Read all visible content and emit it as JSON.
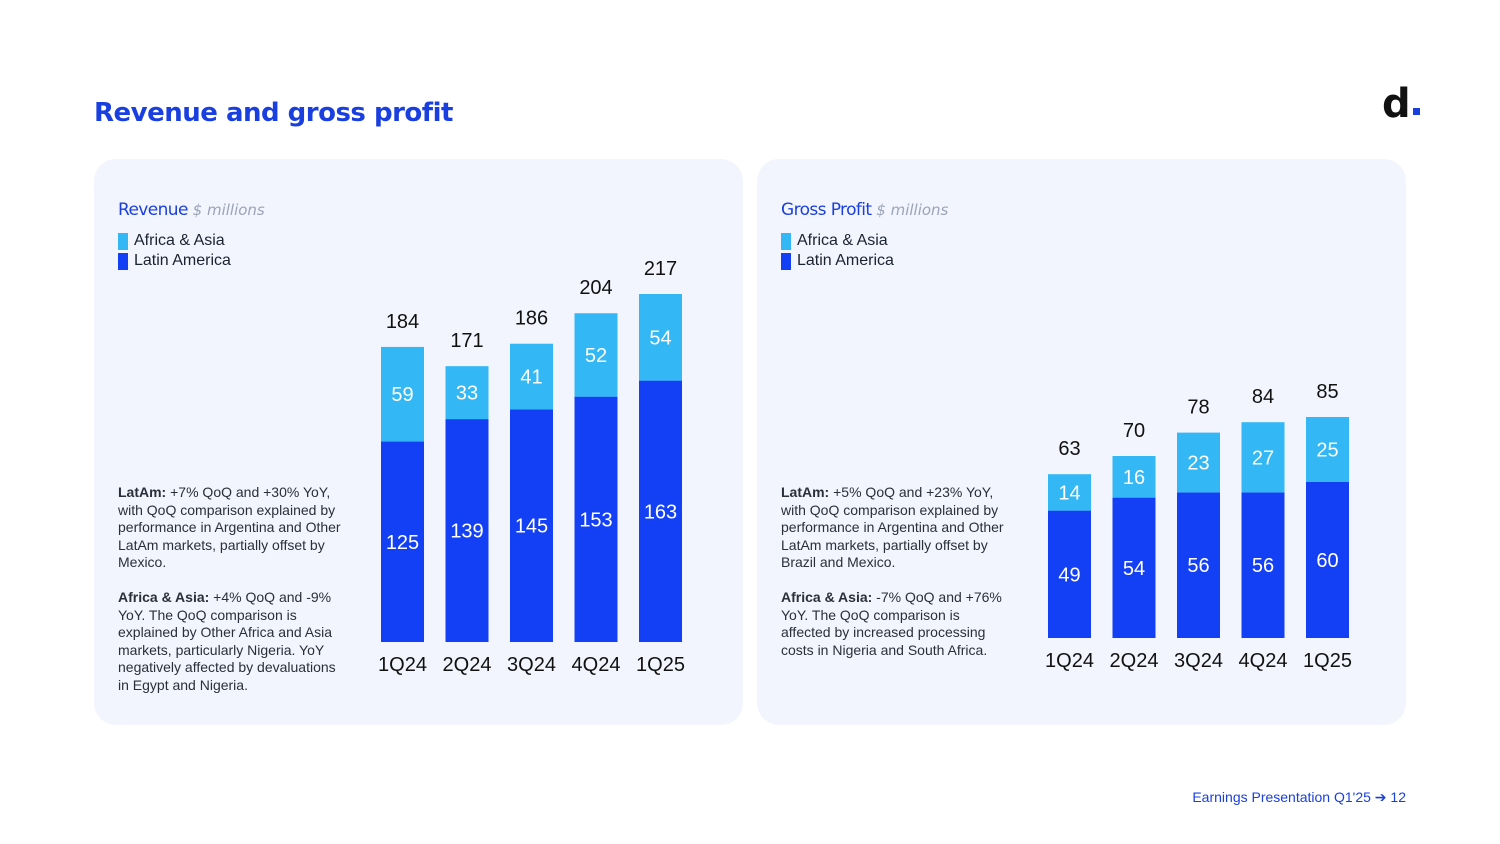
{
  "page": {
    "title": "Revenue and gross profit",
    "logo_text": "d",
    "footer_text": "Earnings Presentation Q1'25 ➔",
    "page_number": "12"
  },
  "colors": {
    "africa_asia": "#33b8f5",
    "latin_america": "#1440f5",
    "accent": "#1a3fe0"
  },
  "legend": [
    "Africa & Asia",
    "Latin America"
  ],
  "revenue_panel": {
    "heading": "Revenue",
    "unit": "$ millions",
    "notes": [
      {
        "label": "LatAm:",
        "text": " +7% QoQ and +30% YoY, with QoQ comparison explained by performance in Argentina and Other LatAm markets, partially offset by Mexico."
      },
      {
        "label": "Africa & Asia:",
        "text": " +4% QoQ and -9% YoY. The QoQ comparison is explained by Other Africa and Asia markets, particularly Nigeria. YoY negatively affected by devaluations in Egypt and Nigeria."
      }
    ]
  },
  "gross_profit_panel": {
    "heading": "Gross Profit",
    "unit": "$ millions",
    "notes": [
      {
        "label": "LatAm:",
        "text": " +5% QoQ and +23% YoY, with QoQ comparison explained by performance in Argentina and Other LatAm markets, partially offset by Brazil and Mexico."
      },
      {
        "label": "Africa & Asia:",
        "text": " -7% QoQ and +76% YoY. The QoQ comparison is affected by increased processing costs in Nigeria and South Africa."
      }
    ]
  },
  "chart_data": [
    {
      "type": "bar",
      "stacked": true,
      "title": "Revenue",
      "unit": "$ millions",
      "categories": [
        "1Q24",
        "2Q24",
        "3Q24",
        "4Q24",
        "1Q25"
      ],
      "series": [
        {
          "name": "Latin America",
          "values": [
            125,
            139,
            145,
            153,
            163
          ]
        },
        {
          "name": "Africa & Asia",
          "values": [
            59,
            33,
            41,
            52,
            54
          ]
        }
      ],
      "totals": [
        184,
        171,
        186,
        204,
        217
      ],
      "ylim": [
        0,
        217
      ]
    },
    {
      "type": "bar",
      "stacked": true,
      "title": "Gross Profit",
      "unit": "$ millions",
      "categories": [
        "1Q24",
        "2Q24",
        "3Q24",
        "4Q24",
        "1Q25"
      ],
      "series": [
        {
          "name": "Latin America",
          "values": [
            49,
            54,
            56,
            56,
            60
          ]
        },
        {
          "name": "Africa & Asia",
          "values": [
            14,
            16,
            23,
            27,
            25
          ]
        }
      ],
      "totals": [
        63,
        70,
        78,
        84,
        85
      ],
      "ylim": [
        0,
        85
      ]
    }
  ]
}
